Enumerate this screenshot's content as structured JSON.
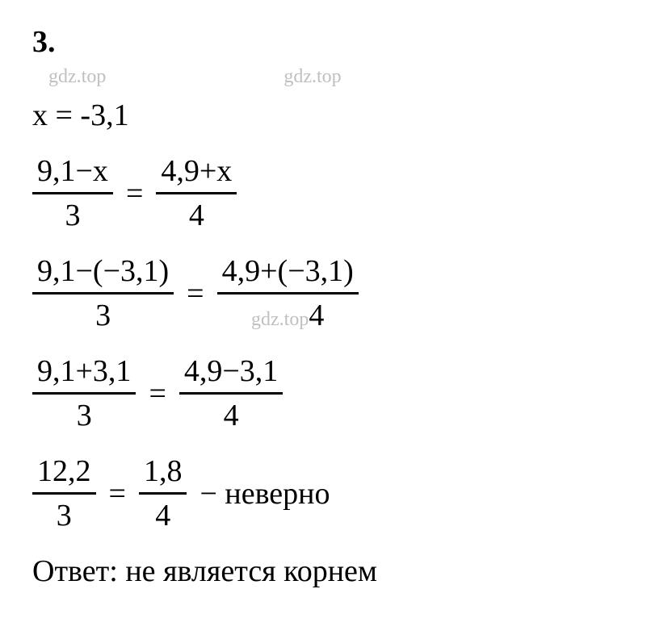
{
  "problem": {
    "number": "3."
  },
  "watermarks": {
    "top_left": "gdz.top",
    "top_right": "gdz.top",
    "inline": "gdz.top"
  },
  "lines": {
    "given": "x = -3,1",
    "eq1": {
      "left_num": "9,1−x",
      "left_denom": "3",
      "right_num": "4,9+x",
      "right_denom": "4"
    },
    "eq2": {
      "left_num": "9,1−(−3,1)",
      "left_denom": "3",
      "right_num": "4,9+(−3,1)",
      "right_denom": "4"
    },
    "eq3": {
      "left_num": "9,1+3,1",
      "left_denom": "3",
      "right_num": "4,9−3,1",
      "right_denom": "4"
    },
    "eq4": {
      "left_num": "12,2",
      "left_denom": "3",
      "right_num": "1,8",
      "right_denom": "4",
      "suffix": "− неверно"
    }
  },
  "equals_sign": "=",
  "answer": {
    "label": "Ответ:",
    "text": " не является корнем"
  },
  "colors": {
    "text": "#000000",
    "watermark": "#c0c0c0",
    "background": "#ffffff"
  },
  "typography": {
    "main_fontsize": 38,
    "watermark_fontsize": 24,
    "font_family": "Times New Roman"
  }
}
